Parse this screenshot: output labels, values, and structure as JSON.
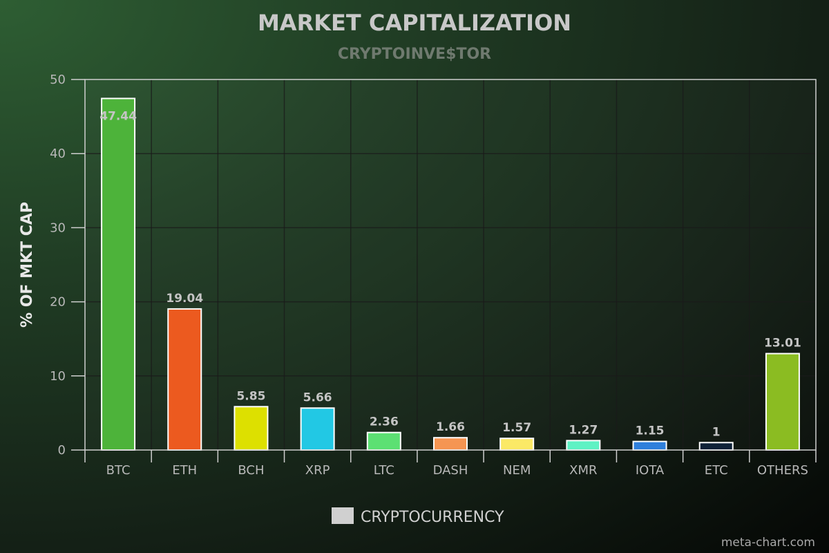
{
  "chart_data": {
    "type": "bar",
    "title": "MARKET CAPITALIZATION",
    "subtitle": "CRYPTOINVE$TOR",
    "xlabel": "",
    "ylabel": "% OF MKT CAP",
    "ylim": [
      0,
      50
    ],
    "yticks": [
      0,
      10,
      20,
      30,
      40,
      50
    ],
    "categories": [
      "BTC",
      "ETH",
      "BCH",
      "XRP",
      "LTC",
      "DASH",
      "NEM",
      "XMR",
      "IOTA",
      "ETC",
      "OTHERS"
    ],
    "series": [
      {
        "name": "CRYPTOCURRENCY",
        "values": [
          47.44,
          19.04,
          5.85,
          5.66,
          2.36,
          1.66,
          1.57,
          1.27,
          1.15,
          1,
          13.01
        ],
        "colors": [
          "#4db33a",
          "#ec5a1f",
          "#dde000",
          "#22c8e4",
          "#5ce073",
          "#f59552",
          "#fbe966",
          "#5ff2c4",
          "#2f7fdc",
          "#0f2238",
          "#8bbc22"
        ]
      }
    ],
    "legend": {
      "position": "bottom",
      "swatch_color": "#d0d0d0"
    },
    "grid": true,
    "credit": "meta-chart.com"
  }
}
